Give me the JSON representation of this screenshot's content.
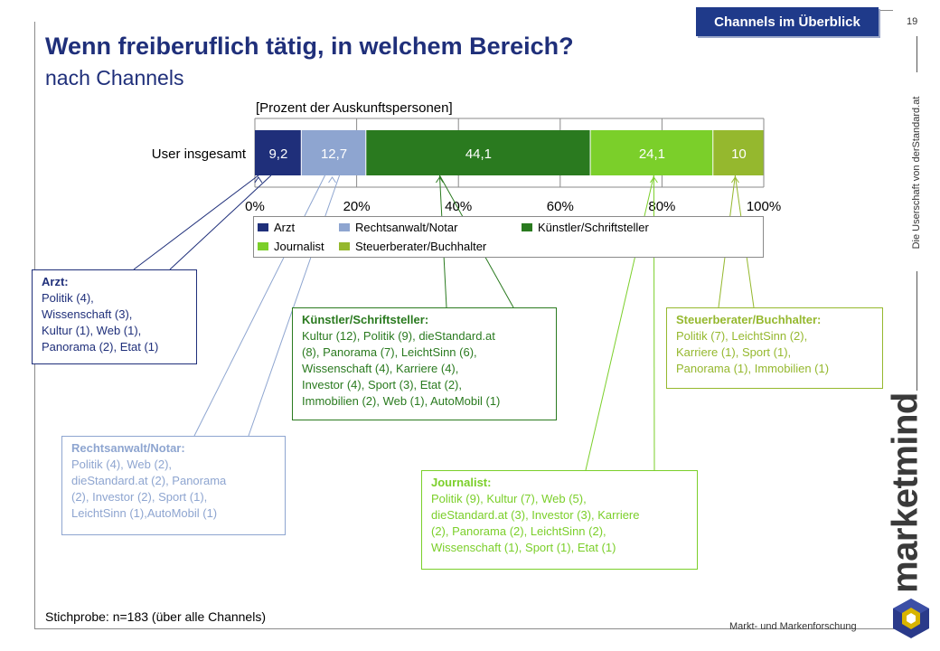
{
  "header": {
    "badge": "Channels im Überblick",
    "page_number": "19",
    "title": "Wenn freiberuflich tätig, in welchem Bereich?",
    "subtitle": "nach Channels"
  },
  "sidebar": {
    "vertical_text": "Die Userschaft von derStandard.at",
    "logo_text": "marketmind",
    "tagline": "Markt- und Markenforschung"
  },
  "chart_data": {
    "type": "bar",
    "orientation": "horizontal-stacked-100",
    "unit_label": "[Prozent der Auskunftspersonen]",
    "categories": [
      "User insgesamt"
    ],
    "series": [
      {
        "name": "Arzt",
        "values": [
          9.2
        ],
        "label": "9,2",
        "color": "#1f2f7a"
      },
      {
        "name": "Rechtsanwalt/Notar",
        "values": [
          12.7
        ],
        "label": "12,7",
        "color": "#8ea5d0"
      },
      {
        "name": "Künstler/Schriftsteller",
        "values": [
          44.1
        ],
        "label": "44,1",
        "color": "#2a7a1f"
      },
      {
        "name": "Journalist",
        "values": [
          24.1
        ],
        "label": "24,1",
        "color": "#7bcf2a"
      },
      {
        "name": "Steuerberater/Buchhalter",
        "values": [
          10
        ],
        "label": "10",
        "color": "#95b82e"
      }
    ],
    "xlim": [
      0,
      100
    ],
    "xticks": [
      "0%",
      "20%",
      "40%",
      "60%",
      "80%",
      "100%"
    ],
    "grid": true,
    "legend_position": "bottom"
  },
  "callouts": {
    "arzt": {
      "title": "Arzt:",
      "lines": [
        "Politik (4),",
        "Wissenschaft (3),",
        "Kultur (1), Web (1),",
        "Panorama (2), Etat (1)"
      ]
    },
    "rechtsanwalt": {
      "title": "Rechtsanwalt/Notar:",
      "lines": [
        "Politik (4), Web (2),",
        "dieStandard.at (2), Panorama",
        "(2), Investor (2), Sport (1),",
        "LeichtSinn (1),AutoMobil (1)"
      ]
    },
    "kuenstler": {
      "title": "Künstler/Schriftsteller:",
      "lines": [
        "Kultur (12), Politik (9), dieStandard.at",
        "(8), Panorama (7), LeichtSinn (6),",
        "Wissenschaft (4), Karriere (4),",
        "Investor (4), Sport (3), Etat (2),",
        "Immobilien (2), Web (1), AutoMobil (1)"
      ]
    },
    "journalist": {
      "title": "Journalist:",
      "lines": [
        "Politik (9),  Kultur (7),  Web (5),",
        "dieStandard.at (3), Investor (3),  Karriere",
        "(2), Panorama (2), LeichtSinn (2),",
        "Wissenschaft (1), Sport (1), Etat (1)"
      ]
    },
    "steuerberater": {
      "title": "Steuerberater/Buchhalter:",
      "lines": [
        "Politik (7), LeichtSinn (2),",
        "Karriere (1), Sport (1),",
        "Panorama (1), Immobilien (1)"
      ]
    }
  },
  "footer": {
    "sample": "Stichprobe: n=183 (über alle Channels)"
  }
}
